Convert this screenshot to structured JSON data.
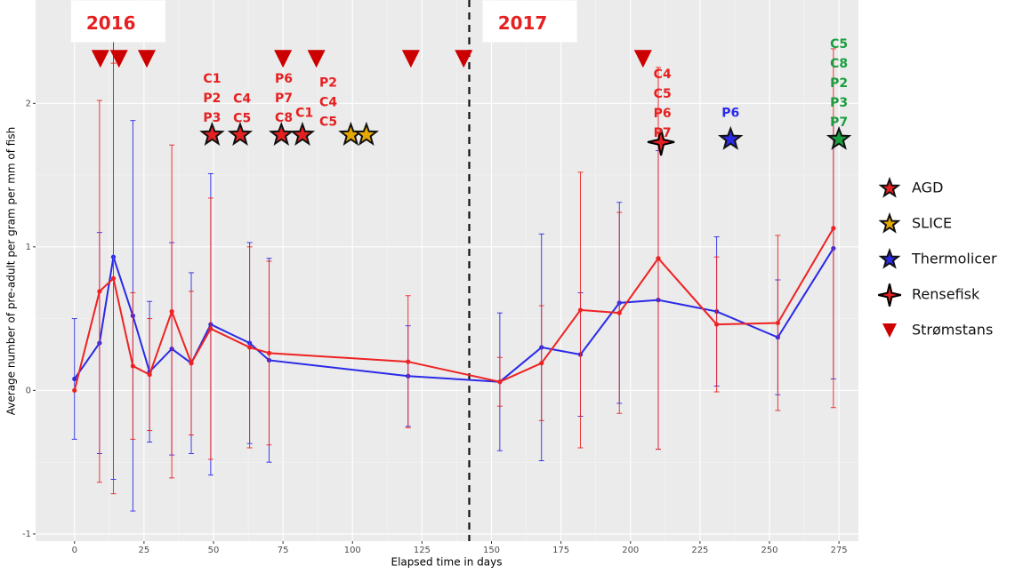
{
  "chart_data": {
    "type": "line",
    "x_label": "Elapsed time in days",
    "y_label": "Average number of pre-adult per gram per mm of fish",
    "xlim": [
      -14,
      282
    ],
    "ylim": [
      -1.05,
      2.72
    ],
    "xticks": [
      0,
      25,
      50,
      75,
      100,
      125,
      150,
      175,
      200,
      225,
      250,
      275
    ],
    "yticks": [
      -1,
      0,
      1,
      2
    ],
    "grid": true,
    "legend": "right",
    "x": [
      0,
      9,
      14,
      21,
      27,
      35,
      42,
      49,
      63,
      70,
      120,
      153,
      168,
      182,
      196,
      210,
      231,
      253,
      273
    ],
    "series": [
      {
        "color": "#2a2ae8",
        "values": [
          0.08,
          0.33,
          0.93,
          0.52,
          0.13,
          0.29,
          0.19,
          0.46,
          0.33,
          0.21,
          0.1,
          0.06,
          0.3,
          0.25,
          0.61,
          0.63,
          0.55,
          0.37,
          0.99
        ],
        "errors": [
          0.42,
          0.77,
          1.55,
          1.36,
          0.49,
          0.74,
          0.63,
          1.05,
          0.7,
          0.71,
          0.35,
          0.48,
          0.79,
          0.43,
          0.7,
          1.04,
          0.52,
          0.4,
          0.91
        ]
      },
      {
        "color": "#ee2222",
        "values": [
          0.0,
          0.69,
          0.78,
          0.17,
          0.11,
          0.55,
          0.19,
          0.43,
          0.3,
          0.26,
          0.2,
          0.06,
          0.19,
          0.56,
          0.54,
          0.92,
          0.46,
          0.47,
          1.13
        ],
        "errors": [
          0,
          1.33,
          1.5,
          0.51,
          0.39,
          1.16,
          0.5,
          0.91,
          0.7,
          0.64,
          0.46,
          0.17,
          0.4,
          0.96,
          0.7,
          1.33,
          0.47,
          0.61,
          1.25
        ]
      }
    ],
    "vline": 142,
    "markers": [
      {
        "name": "AGD",
        "shape": "star",
        "color": "#e62020",
        "x": [
          49.5,
          59.6,
          74.4,
          82
        ],
        "y": [
          1.78,
          1.78,
          1.78,
          1.78
        ]
      },
      {
        "name": "SLICE",
        "shape": "star",
        "color": "#e6a800",
        "x": [
          99.4,
          105
        ],
        "y": [
          1.78,
          1.78
        ]
      },
      {
        "name": "Thermolicer",
        "shape": "star",
        "color": "#2a2ae8",
        "x": [
          236
        ],
        "y": [
          1.75
        ]
      },
      {
        "name": "Rensefisk",
        "shape": "star4",
        "color": "#e62020",
        "x": [
          211
        ],
        "y": [
          1.73
        ]
      },
      {
        "name": "Strømstans",
        "shape": "triangle",
        "color": "#cc0000",
        "x": [
          9.3,
          16,
          26,
          75,
          87,
          121,
          140,
          204.5
        ],
        "y": [
          2.31,
          2.31,
          2.31,
          2.31,
          2.31,
          2.31,
          2.31,
          2.31
        ]
      },
      {
        "shape": "star",
        "color": "#1a9e3f",
        "x": [
          275
        ],
        "y": [
          1.75
        ]
      }
    ],
    "annotations": [
      {
        "box": true,
        "x": 15.4,
        "y": 2.55,
        "color": "#e62020",
        "lines": [
          "2016"
        ]
      },
      {
        "box": true,
        "x": 163.5,
        "y": 2.55,
        "color": "#e62020",
        "lines": [
          "2017"
        ]
      },
      {
        "x": 49.5,
        "y": 2.17,
        "color": "#e62020",
        "lines": [
          "C1",
          "P2",
          "P3"
        ]
      },
      {
        "x": 60.3,
        "y": 2.03,
        "color": "#e62020",
        "lines": [
          "C4",
          "C5"
        ]
      },
      {
        "x": 75.3,
        "y": 2.17,
        "color": "#e62020",
        "lines": [
          "P6",
          "P7",
          "C8"
        ]
      },
      {
        "x": 82.7,
        "y": 1.93,
        "color": "#e62020",
        "lines": [
          "C1"
        ]
      },
      {
        "x": 91.3,
        "y": 2.14,
        "color": "#e62020",
        "lines": [
          "P2",
          "C4",
          "C5"
        ]
      },
      {
        "x": 211.5,
        "y": 2.2,
        "color": "#e62020",
        "lines": [
          "C4",
          "C5",
          "P6",
          "P7"
        ]
      },
      {
        "x": 236,
        "y": 1.93,
        "color": "#2a2ae8",
        "lines": [
          "P6"
        ]
      },
      {
        "x": 275,
        "y": 2.41,
        "color": "#1a9e3f",
        "lines": [
          "C5",
          "C8",
          "P2",
          "P3",
          "P7"
        ]
      }
    ]
  }
}
